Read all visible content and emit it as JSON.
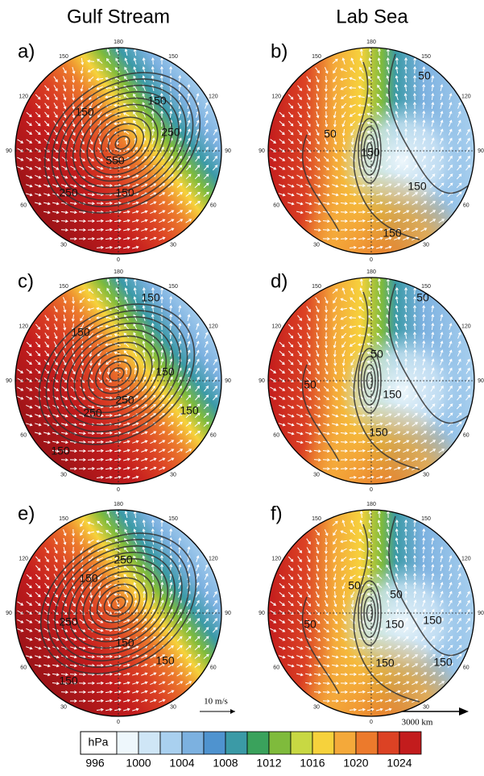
{
  "columns": [
    "Gulf Stream",
    "Lab Sea"
  ],
  "angle_labels": [
    "0",
    "30",
    "60",
    "90",
    "120",
    "150",
    "180"
  ],
  "panels": [
    {
      "label": "a)",
      "contour_labels": [
        "150",
        "150",
        "250",
        "550",
        "250",
        "150"
      ]
    },
    {
      "label": "b)",
      "contour_labels": [
        "50",
        "50",
        "150",
        "150",
        "150"
      ]
    },
    {
      "label": "c)",
      "contour_labels": [
        "150",
        "150",
        "150",
        "250",
        "250",
        "150",
        "150"
      ]
    },
    {
      "label": "d)",
      "contour_labels": [
        "50",
        "50",
        "50",
        "150",
        "150"
      ]
    },
    {
      "label": "e)",
      "contour_labels": [
        "250",
        "150",
        "250",
        "150",
        "150",
        "150"
      ]
    },
    {
      "label": "f)",
      "contour_labels": [
        "50",
        "50",
        "50",
        "150",
        "150",
        "150",
        "150"
      ]
    }
  ],
  "wind_scale": "10 m/s",
  "distance_scale": "3000 km",
  "colorbar": {
    "unit": "hPa",
    "colors": [
      "#eef7fc",
      "#cfe6f6",
      "#a9d0ef",
      "#7cb1e0",
      "#4f93cf",
      "#3b9aa6",
      "#3aa25c",
      "#7fbb3c",
      "#c8d843",
      "#f6d23c",
      "#f4a93a",
      "#ec7a2c",
      "#dc4224",
      "#c31c1d"
    ],
    "labels": [
      "996",
      "1000",
      "1004",
      "1008",
      "1012",
      "1016",
      "1020",
      "1024"
    ]
  }
}
